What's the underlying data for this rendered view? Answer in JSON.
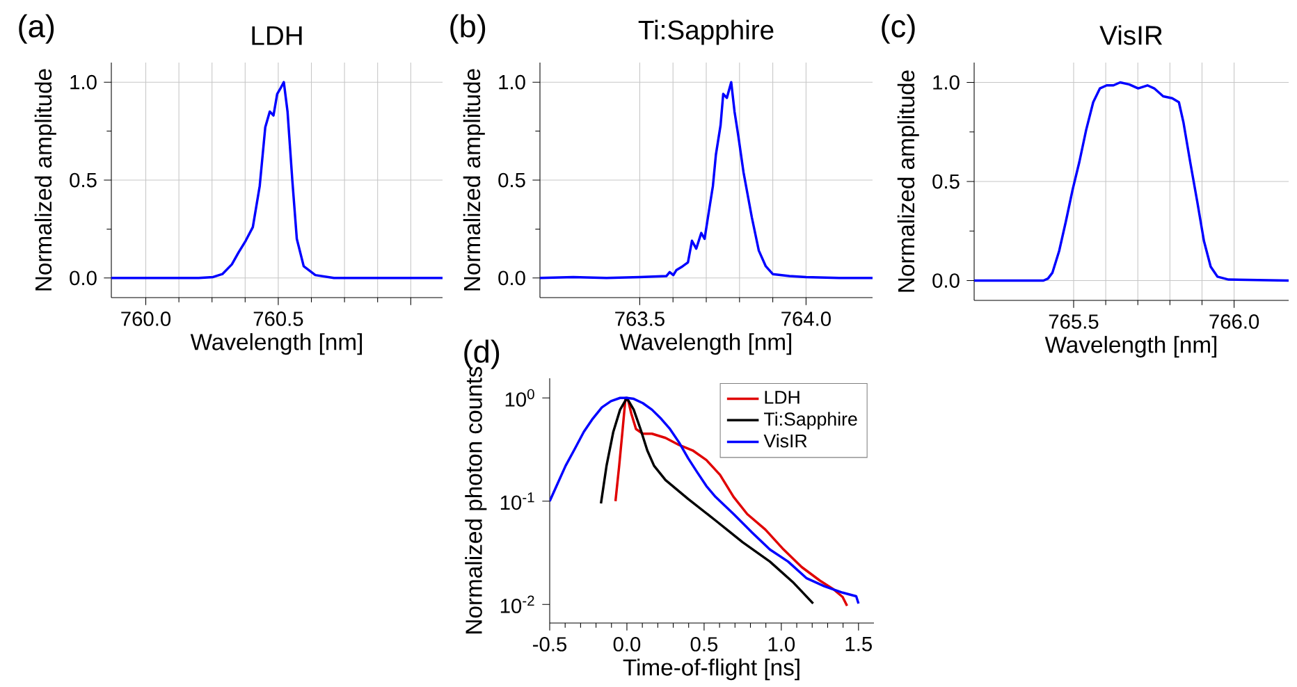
{
  "chart_data": [
    {
      "type": "line",
      "title": "LDH",
      "xlabel": "Wavelength [nm]",
      "ylabel": "Normalized amplitude",
      "annotations": [
        "(a)"
      ],
      "grid": true,
      "xlim": [
        759.87,
        761.12
      ],
      "ylim": [
        -0.1,
        1.1
      ],
      "xticks": [
        {
          "value": 760,
          "label": "760.0"
        },
        {
          "value": 760.5,
          "label": "760.5"
        },
        {
          "value": 761,
          "label": null
        }
      ],
      "yticks": [
        {
          "value": 0,
          "label": "0.0"
        },
        {
          "value": 0.5,
          "label": "0.5"
        },
        {
          "value": 1,
          "label": "1.0"
        }
      ],
      "series": [
        {
          "color": "#0000ff",
          "x": [
            759.87,
            760.2,
            760.254,
            760.289,
            760.325,
            760.35,
            760.377,
            760.404,
            760.43,
            760.451,
            760.468,
            760.482,
            760.496,
            760.509,
            760.521,
            760.535,
            760.553,
            760.57,
            760.596,
            760.64,
            760.71,
            761.12
          ],
          "values": [
            0,
            0,
            0.005,
            0.02,
            0.07,
            0.13,
            0.19,
            0.26,
            0.47,
            0.77,
            0.85,
            0.83,
            0.94,
            0.97,
            1.0,
            0.85,
            0.5,
            0.2,
            0.06,
            0.015,
            0,
            0
          ]
        }
      ]
    },
    {
      "type": "line",
      "title": "Ti:Sapphire",
      "xlabel": "Wavelength [nm]",
      "ylabel": "Normalized amplitude",
      "annotations": [
        "(b)"
      ],
      "grid": true,
      "xlim": [
        763.2,
        764.2
      ],
      "ylim": [
        -0.1,
        1.1
      ],
      "xticks": [
        {
          "value": 763.5,
          "label": "763.5"
        },
        {
          "value": 764,
          "label": "764.0"
        }
      ],
      "yticks": [
        {
          "value": 0,
          "label": "0.0"
        },
        {
          "value": 0.5,
          "label": "0.5"
        },
        {
          "value": 1,
          "label": "1.0"
        }
      ],
      "series": [
        {
          "color": "#0000ff",
          "x": [
            763.2,
            763.3,
            763.4,
            763.5,
            763.58,
            763.59,
            763.601,
            763.61,
            763.629,
            763.645,
            763.657,
            763.67,
            763.685,
            763.695,
            763.706,
            763.72,
            763.729,
            763.743,
            763.751,
            763.762,
            763.775,
            763.785,
            763.796,
            763.812,
            763.837,
            763.858,
            763.879,
            763.9,
            763.95,
            764.0,
            764.1,
            764.2
          ],
          "values": [
            0,
            0.005,
            0,
            0.005,
            0.01,
            0.03,
            0.015,
            0.04,
            0.06,
            0.08,
            0.19,
            0.15,
            0.23,
            0.2,
            0.32,
            0.47,
            0.63,
            0.78,
            0.94,
            0.92,
            1.0,
            0.85,
            0.73,
            0.54,
            0.31,
            0.14,
            0.06,
            0.02,
            0.01,
            0.005,
            0,
            0
          ]
        }
      ]
    },
    {
      "type": "line",
      "title": "VisIR",
      "xlabel": "Wavelength [nm]",
      "ylabel": "Normalized amplitude",
      "annotations": [
        "(c)"
      ],
      "grid": true,
      "xlim": [
        765.19,
        766.17
      ],
      "ylim": [
        -0.1,
        1.1
      ],
      "xticks": [
        {
          "value": 765.5,
          "label": "765.5"
        },
        {
          "value": 766,
          "label": "766.0"
        }
      ],
      "yticks": [
        {
          "value": 0,
          "label": "0.0"
        },
        {
          "value": 0.5,
          "label": "0.5"
        },
        {
          "value": 1,
          "label": "1.0"
        }
      ],
      "series": [
        {
          "color": "#0000ff",
          "x": [
            765.19,
            765.406,
            765.42,
            765.434,
            765.455,
            765.476,
            765.497,
            765.518,
            765.539,
            765.561,
            765.582,
            765.603,
            765.624,
            765.645,
            765.673,
            765.701,
            765.73,
            765.751,
            765.779,
            765.807,
            765.828,
            765.842,
            765.863,
            765.885,
            765.906,
            765.927,
            765.948,
            765.983,
            766.17
          ],
          "values": [
            0,
            0,
            0.01,
            0.04,
            0.15,
            0.3,
            0.46,
            0.6,
            0.76,
            0.9,
            0.97,
            0.985,
            0.985,
            1.0,
            0.99,
            0.97,
            0.985,
            0.97,
            0.93,
            0.92,
            0.9,
            0.8,
            0.6,
            0.4,
            0.2,
            0.07,
            0.02,
            0.005,
            0
          ]
        }
      ]
    },
    {
      "type": "line",
      "xlabel": "Time-of-flight [ns]",
      "ylabel": "Normalized photon counts",
      "annotations": [
        "(d)"
      ],
      "log": "y",
      "legend": "top right",
      "xlim": [
        -0.5,
        1.6
      ],
      "ylim": [
        0.0066,
        1.55
      ],
      "xticks": [
        -0.5,
        {
          "value": 0,
          "label": "0.0"
        },
        0.5,
        {
          "value": 1,
          "label": "1.0"
        },
        1.5
      ],
      "yticks": [
        {
          "value": 0.01,
          "label": "10$^{-2}$"
        },
        {
          "value": 0.1,
          "label": "10$^{-1}$"
        },
        {
          "value": 1,
          "label": "10$^{0}$"
        }
      ],
      "series": [
        {
          "name": "LDH",
          "color": "#e00000",
          "x": [
            -0.074,
            -0.05,
            -0.029,
            -0.009,
            0.009,
            0.029,
            0.059,
            0.103,
            0.162,
            0.25,
            0.338,
            0.426,
            0.515,
            0.603,
            0.691,
            0.779,
            0.897,
            1.015,
            1.132,
            1.25,
            1.338,
            1.397,
            1.426
          ],
          "values": [
            0.1,
            0.22,
            0.47,
            1.0,
            0.93,
            0.7,
            0.5,
            0.45,
            0.45,
            0.41,
            0.35,
            0.31,
            0.25,
            0.18,
            0.11,
            0.075,
            0.053,
            0.034,
            0.023,
            0.017,
            0.014,
            0.0118,
            0.0097
          ]
        },
        {
          "name": "Ti:Sapphire",
          "color": "#000000",
          "x": [
            -0.168,
            -0.132,
            -0.088,
            -0.044,
            0,
            0.044,
            0.088,
            0.132,
            0.176,
            0.25,
            0.397,
            0.574,
            0.75,
            0.926,
            1.074,
            1.206
          ],
          "values": [
            0.095,
            0.22,
            0.47,
            0.77,
            1.0,
            0.77,
            0.5,
            0.31,
            0.22,
            0.16,
            0.105,
            0.065,
            0.04,
            0.026,
            0.0165,
            0.0102
          ]
        },
        {
          "name": "VisIR",
          "color": "#0000ff",
          "x": [
            -0.5,
            -0.456,
            -0.397,
            -0.338,
            -0.279,
            -0.221,
            -0.162,
            -0.103,
            -0.044,
            0,
            0.044,
            0.103,
            0.162,
            0.221,
            0.279,
            0.338,
            0.397,
            0.456,
            0.515,
            0.574,
            0.691,
            0.809,
            0.926,
            1.044,
            1.162,
            1.279,
            1.397,
            1.485,
            1.5
          ],
          "values": [
            0.1,
            0.14,
            0.22,
            0.32,
            0.47,
            0.63,
            0.81,
            0.93,
            1.0,
            1.0,
            0.98,
            0.89,
            0.77,
            0.63,
            0.5,
            0.37,
            0.26,
            0.19,
            0.14,
            0.11,
            0.075,
            0.05,
            0.034,
            0.026,
            0.018,
            0.015,
            0.013,
            0.012,
            0.0102
          ]
        }
      ]
    }
  ]
}
